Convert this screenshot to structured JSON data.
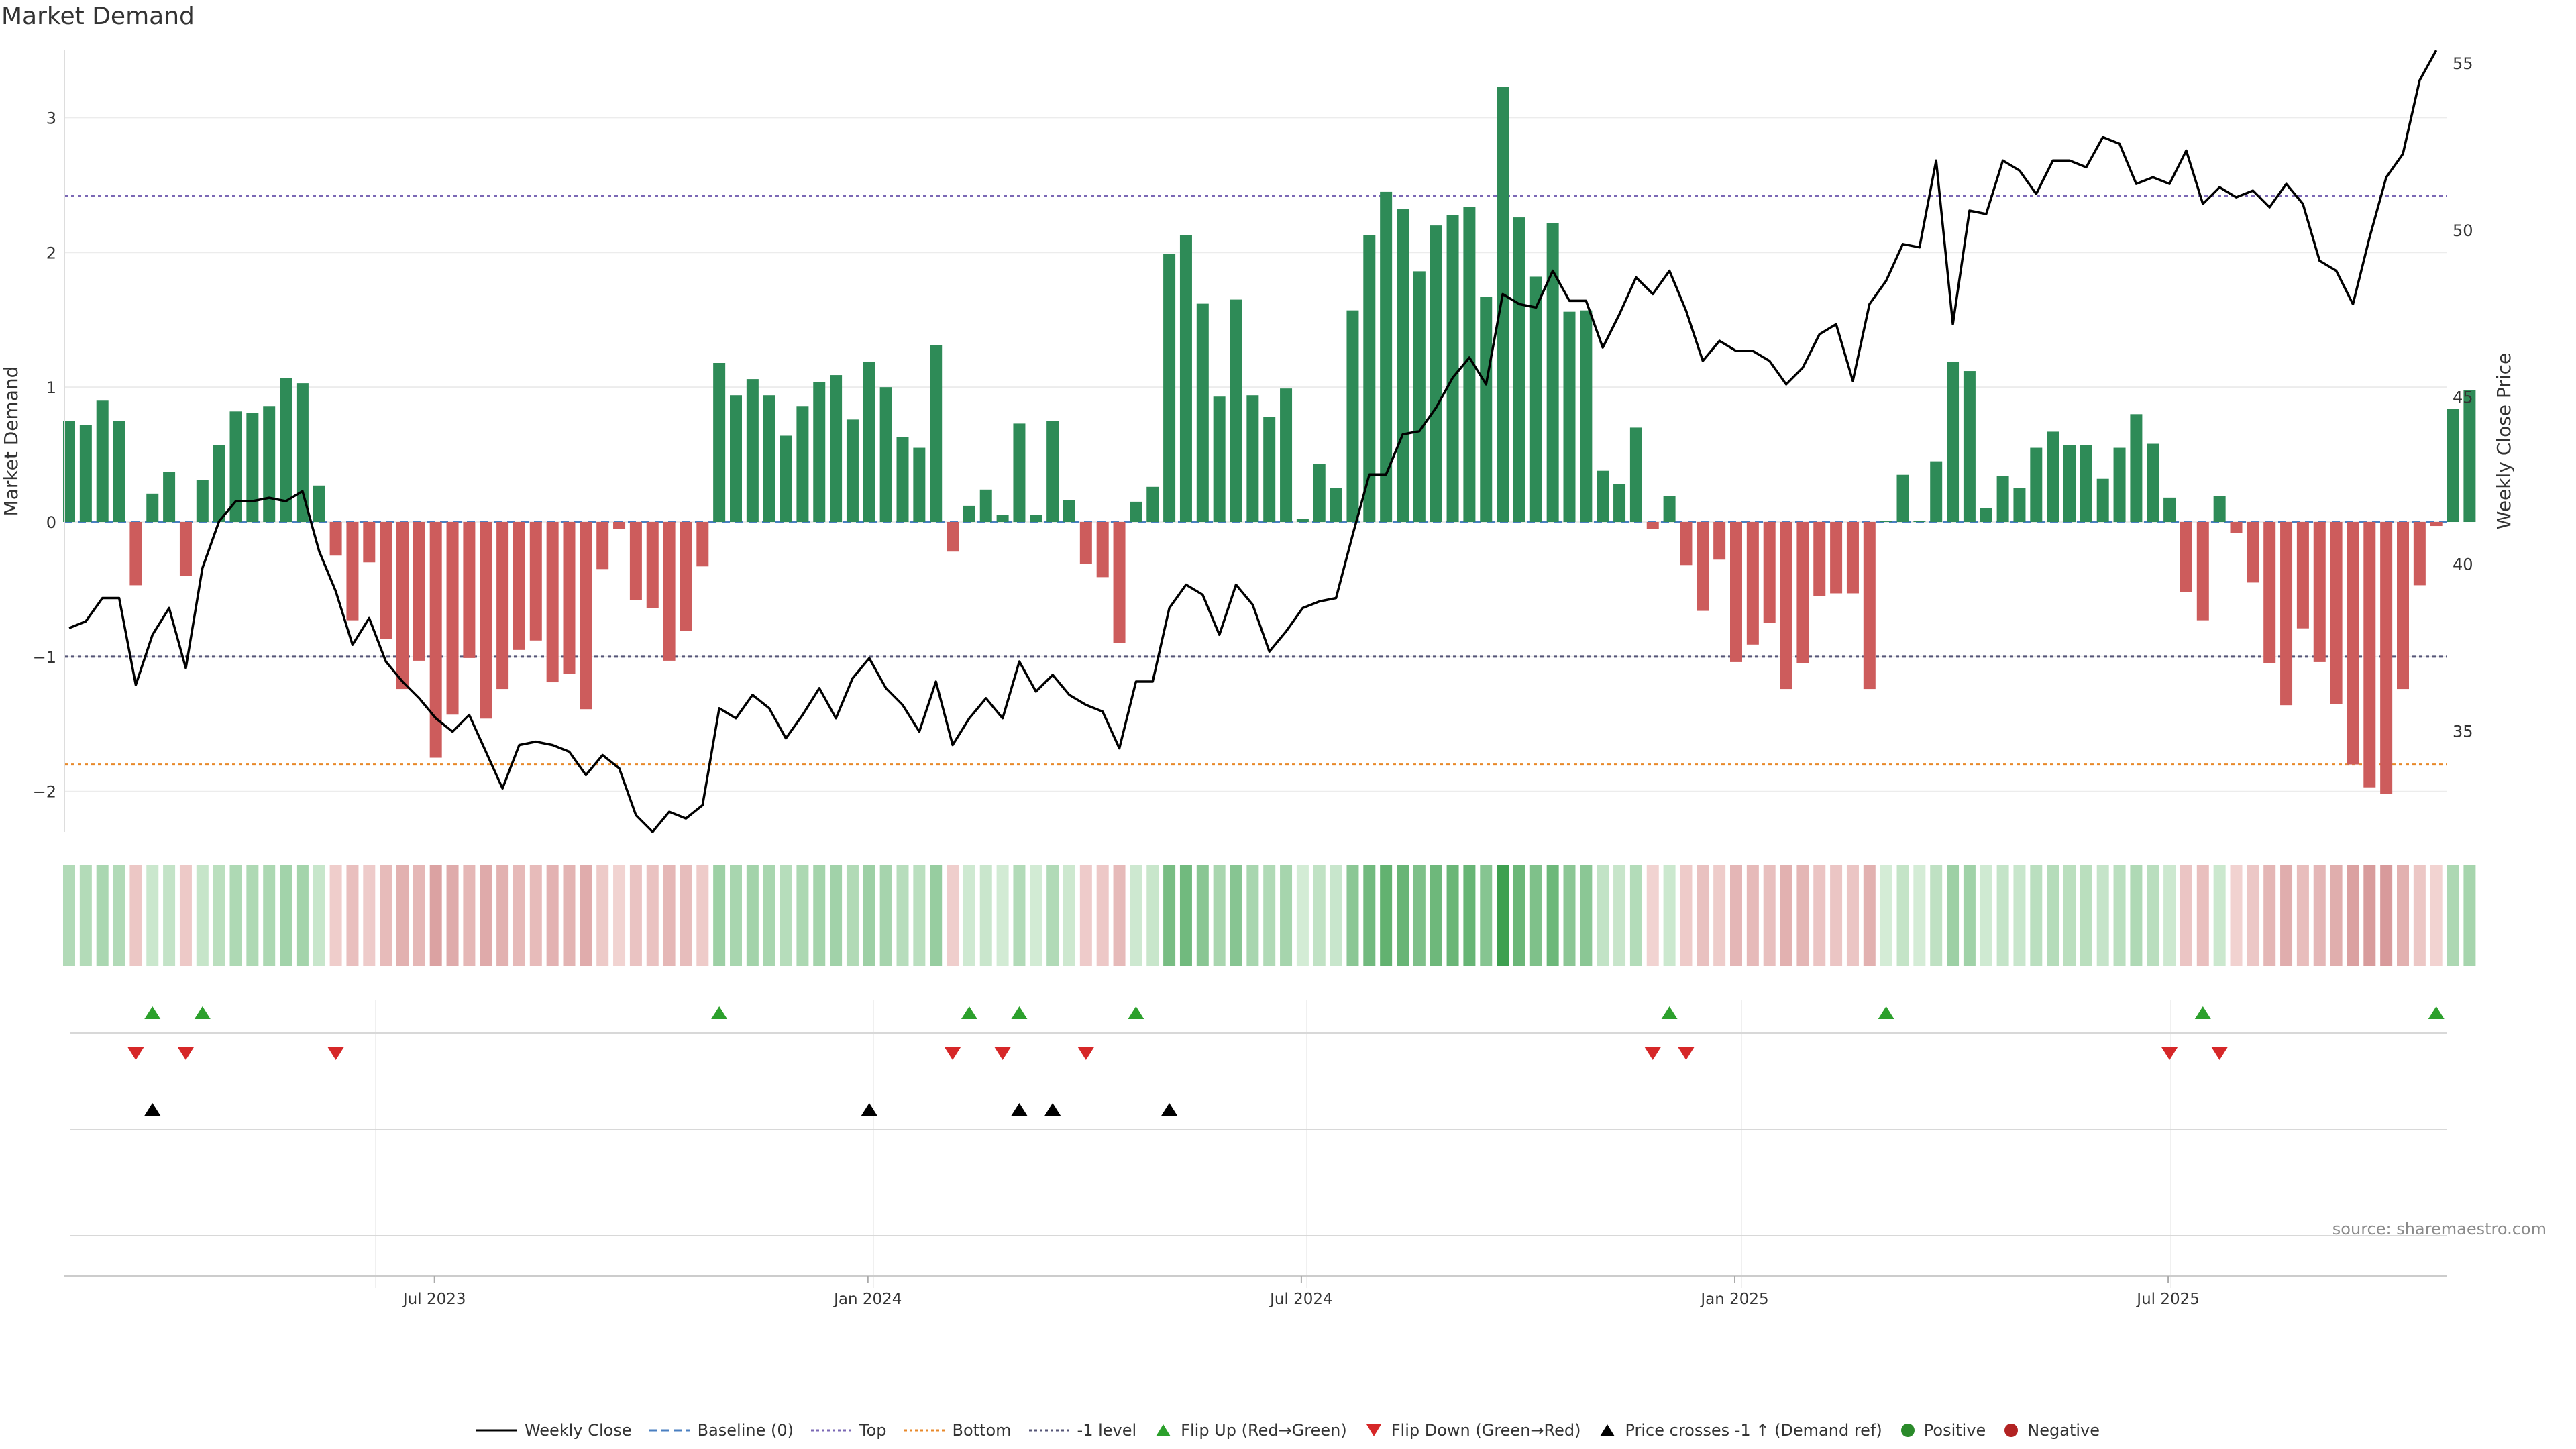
{
  "title": "Market Demand",
  "source": "source: sharemaestro.com",
  "colors": {
    "positive": "#2e8b57",
    "negative": "#cd5c5c",
    "price": "#000000",
    "top": "#7b68b5",
    "bottom": "#e8892b",
    "minus_one": "#555577",
    "flip_up": "#2ca02c",
    "flip_down": "#d62728",
    "cross": "#000000"
  },
  "chart_data": {
    "type": "bar",
    "title": "Market Demand",
    "ylabel": "Market Demand",
    "y2label": "Weekly Close Price",
    "ylim": [
      -2.3,
      3.5
    ],
    "y_ticks": [
      -2,
      -1,
      0,
      1,
      2,
      3
    ],
    "y_tick_labels": [
      "−2",
      "−1",
      "0",
      "1",
      "2",
      "3"
    ],
    "y2lim": [
      32.2,
      55.6
    ],
    "y2_ticks": [
      35,
      40,
      45,
      50,
      55
    ],
    "y2_tick_labels": [
      "35",
      "40",
      "45",
      "50",
      "55"
    ],
    "x_tick_index": [
      22,
      48,
      74,
      100,
      126
    ],
    "x_tick_labels": [
      "Jul 2023",
      "Jan 2024",
      "Jul 2024",
      "Jan 2025",
      "Jul 2025"
    ],
    "reference_lines": {
      "baseline": 0,
      "top": 2.42,
      "bottom": -1.8,
      "minus_one": -1
    },
    "demand": [
      0.75,
      0.72,
      0.9,
      0.75,
      -0.47,
      0.21,
      0.37,
      -0.4,
      0.31,
      0.57,
      0.82,
      0.81,
      0.86,
      1.07,
      1.03,
      0.27,
      -0.25,
      -0.73,
      -0.3,
      -0.87,
      -1.24,
      -1.03,
      -1.75,
      -1.43,
      -1.01,
      -1.46,
      -1.24,
      -0.95,
      -0.88,
      -1.19,
      -1.13,
      -1.39,
      -0.35,
      -0.05,
      -0.58,
      -0.64,
      -1.03,
      -0.81,
      -0.33,
      1.18,
      0.94,
      1.06,
      0.94,
      0.64,
      0.86,
      1.04,
      1.09,
      0.76,
      1.19,
      1.0,
      0.63,
      0.55,
      1.31,
      -0.22,
      0.12,
      0.24,
      0.05,
      0.73,
      0.05,
      0.75,
      0.16,
      -0.31,
      -0.41,
      -0.9,
      0.15,
      0.26,
      1.99,
      2.13,
      1.62,
      0.93,
      1.65,
      0.94,
      0.78,
      0.99,
      0.02,
      0.43,
      0.25,
      1.57,
      2.13,
      2.45,
      2.32,
      1.86,
      2.2,
      2.28,
      2.34,
      1.67,
      3.23,
      2.26,
      1.82,
      2.22,
      1.56,
      1.57,
      0.38,
      0.28,
      0.7,
      -0.05,
      0.19,
      -0.32,
      -0.66,
      -0.28,
      -1.04,
      -0.91,
      -0.75,
      -1.24,
      -1.05,
      -0.55,
      -0.53,
      -0.53,
      -1.24,
      0.01,
      0.35,
      0.01,
      0.45,
      1.19,
      1.12,
      0.1,
      0.34,
      0.25,
      0.55,
      0.67,
      0.57,
      0.57,
      0.32,
      0.55,
      0.8,
      0.58,
      0.18,
      -0.52,
      -0.73,
      0.19,
      -0.08,
      -0.45,
      -1.05,
      -1.36,
      -0.79,
      -1.04,
      -1.35,
      -1.8,
      -1.97,
      -2.02,
      -1.24,
      -0.47,
      -0.03,
      0.84,
      0.98
    ],
    "weekly_close": [
      38.3,
      38.5,
      39.2,
      39.2,
      36.6,
      38.1,
      38.9,
      37.1,
      40.1,
      41.5,
      42.1,
      42.1,
      42.2,
      42.1,
      42.4,
      40.6,
      39.4,
      37.8,
      38.6,
      37.3,
      36.7,
      36.2,
      35.6,
      35.2,
      35.7,
      34.6,
      33.5,
      34.8,
      34.9,
      34.8,
      34.6,
      33.9,
      34.5,
      34.1,
      32.7,
      32.2,
      32.8,
      32.6,
      33.0,
      35.9,
      35.6,
      36.3,
      35.9,
      35.0,
      35.7,
      36.5,
      35.6,
      36.8,
      37.4,
      36.5,
      36.0,
      35.2,
      36.7,
      34.8,
      35.6,
      36.2,
      35.6,
      37.3,
      36.4,
      36.9,
      36.3,
      36.0,
      35.8,
      34.7,
      36.7,
      36.7,
      38.9,
      39.6,
      39.3,
      38.1,
      39.6,
      39.0,
      37.6,
      38.2,
      38.9,
      39.1,
      39.2,
      41.1,
      42.9,
      42.9,
      44.1,
      44.2,
      44.9,
      45.8,
      46.4,
      45.6,
      48.3,
      48.0,
      47.9,
      49.0,
      48.1,
      48.1,
      46.7,
      47.7,
      48.8,
      48.3,
      49.0,
      47.8,
      46.3,
      46.9,
      46.6,
      46.6,
      46.3,
      45.6,
      46.1,
      47.1,
      47.4,
      45.7,
      48.0,
      48.7,
      49.8,
      49.7,
      52.3,
      47.4,
      50.8,
      50.7,
      52.3,
      52.0,
      51.3,
      52.3,
      52.3,
      52.1,
      53.0,
      52.8,
      51.6,
      51.8,
      51.6,
      52.6,
      51.0,
      51.5,
      51.2,
      51.4,
      50.9,
      51.6,
      51.0,
      49.3,
      49.0,
      48.0,
      50.0,
      51.8,
      52.5,
      54.7,
      55.6
    ],
    "flip_up_index": [
      5,
      8,
      39,
      54,
      57,
      64,
      96,
      109,
      128,
      142
    ],
    "flip_down_index": [
      4,
      7,
      16,
      53,
      56,
      61,
      95,
      97,
      126,
      129
    ],
    "cross_up_index": [
      5,
      48,
      57,
      59,
      66
    ]
  },
  "legend": [
    {
      "label": "Weekly Close",
      "icon": "solid-line"
    },
    {
      "label": "Baseline (0)",
      "icon": "dashed-line"
    },
    {
      "label": "Top",
      "icon": "dotted-line"
    },
    {
      "label": "Bottom",
      "icon": "dotted-line"
    },
    {
      "label": "-1 level",
      "icon": "dotted-line"
    },
    {
      "label": "Flip Up (Red→Green)",
      "icon": "triangle-up"
    },
    {
      "label": "Flip Down (Green→Red)",
      "icon": "triangle-down"
    },
    {
      "label": "Price crosses -1 ↑ (Demand ref)",
      "icon": "triangle-up"
    },
    {
      "label": "Positive",
      "icon": "circle"
    },
    {
      "label": "Negative",
      "icon": "circle"
    }
  ]
}
